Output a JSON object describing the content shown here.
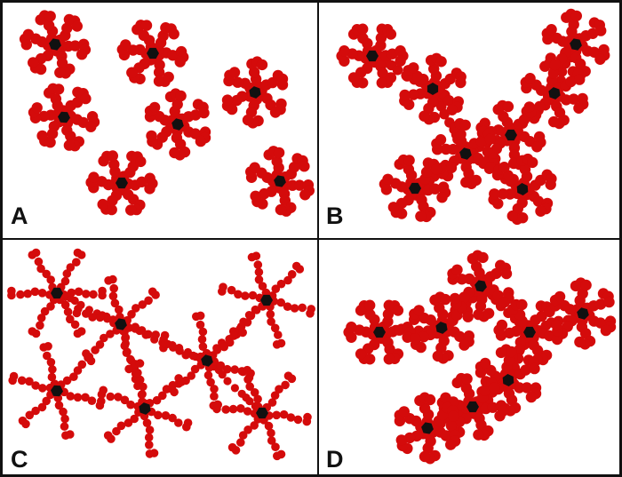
{
  "figure": {
    "colors": {
      "bead": "#d40b0b",
      "core": "#111111",
      "frame": "#111111",
      "background": "#ffffff"
    },
    "panels": [
      {
        "label": "A",
        "description_icon": "star-polymer-cluster",
        "stars": [
          {
            "arms": 6,
            "style": "dense"
          },
          {
            "arms": 6,
            "style": "dense"
          },
          {
            "arms": 6,
            "style": "dense"
          },
          {
            "arms": 6,
            "style": "dense"
          },
          {
            "arms": 6,
            "style": "dense"
          },
          {
            "arms": 6,
            "style": "dense"
          },
          {
            "arms": 6,
            "style": "dense"
          }
        ]
      },
      {
        "label": "B",
        "description_icon": "star-polymer-cluster",
        "stars": [
          {
            "arms": 6,
            "style": "dense"
          },
          {
            "arms": 6,
            "style": "dense"
          },
          {
            "arms": 6,
            "style": "dense"
          },
          {
            "arms": 6,
            "style": "dense"
          },
          {
            "arms": 6,
            "style": "dense"
          },
          {
            "arms": 6,
            "style": "dense"
          },
          {
            "arms": 6,
            "style": "dense"
          }
        ]
      },
      {
        "label": "C",
        "description_icon": "star-polymer-cluster",
        "stars": [
          {
            "arms": 6,
            "style": "sparse"
          },
          {
            "arms": 6,
            "style": "sparse"
          },
          {
            "arms": 6,
            "style": "sparse"
          },
          {
            "arms": 6,
            "style": "sparse"
          },
          {
            "arms": 6,
            "style": "sparse"
          },
          {
            "arms": 6,
            "style": "sparse"
          },
          {
            "arms": 6,
            "style": "sparse"
          }
        ]
      },
      {
        "label": "D",
        "description_icon": "star-polymer-cluster",
        "stars": [
          {
            "arms": 6,
            "style": "dense"
          },
          {
            "arms": 6,
            "style": "dense"
          },
          {
            "arms": 6,
            "style": "dense"
          },
          {
            "arms": 6,
            "style": "dense"
          },
          {
            "arms": 6,
            "style": "dense"
          },
          {
            "arms": 6,
            "style": "dense"
          },
          {
            "arms": 6,
            "style": "dense"
          }
        ]
      }
    ]
  }
}
